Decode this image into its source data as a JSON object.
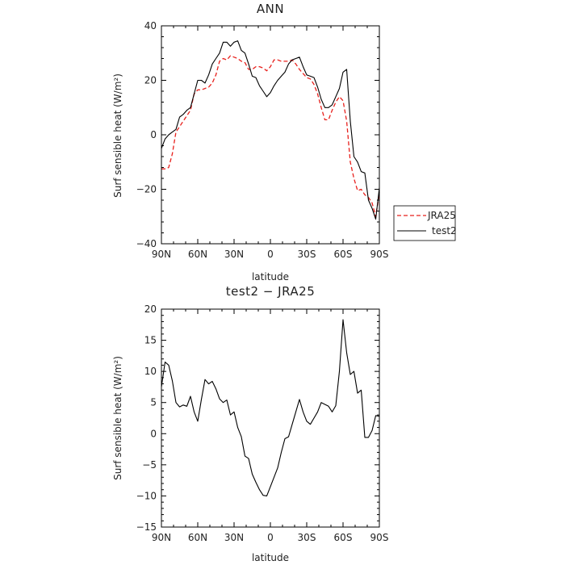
{
  "chart_data": [
    {
      "type": "line",
      "title": "ANN",
      "xlabel": "latitude",
      "ylabel": "Surf sensible heat (W/m²)",
      "xlim": [
        90,
        -90
      ],
      "ylim": [
        -40,
        40
      ],
      "x_ticks": [
        90,
        60,
        30,
        0,
        -30,
        -60,
        -90
      ],
      "x_tick_labels": [
        "90N",
        "60N",
        "30N",
        "0",
        "30S",
        "60S",
        "90S"
      ],
      "y_ticks": [
        -40,
        -20,
        0,
        20,
        40
      ],
      "y_tick_labels": [
        "−40",
        "−20",
        "0",
        "20",
        "40"
      ],
      "legend": "right",
      "series": [
        {
          "name": "JRA25",
          "color": "#e8201c",
          "dash": "dashed",
          "x": [
            90,
            87,
            84,
            81,
            78,
            75,
            72,
            69,
            66,
            63,
            60,
            57,
            54,
            51,
            48,
            45,
            42,
            39,
            36,
            33,
            30,
            27,
            24,
            21,
            18,
            15,
            12,
            9,
            6,
            3,
            0,
            -3,
            -6,
            -9,
            -12,
            -15,
            -18,
            -21,
            -24,
            -27,
            -30,
            -33,
            -36,
            -39,
            -42,
            -45,
            -48,
            -51,
            -54,
            -57,
            -60,
            -63,
            -66,
            -69,
            -72,
            -75,
            -78,
            -81,
            -84,
            -87,
            -90
          ],
          "y": [
            -12.5,
            -12.5,
            -12,
            -7,
            1,
            3,
            5,
            7,
            9,
            15,
            16.5,
            16.5,
            17,
            17.5,
            19,
            22,
            27,
            28,
            27.5,
            29,
            28.5,
            28,
            27,
            26.5,
            24,
            24,
            25,
            25,
            24.5,
            23.5,
            25,
            27.5,
            27.5,
            27,
            27,
            27,
            27.5,
            26,
            24,
            22.5,
            21,
            20.5,
            18.5,
            15,
            10,
            5.5,
            5.5,
            9,
            12,
            14,
            12.5,
            5,
            -10,
            -16,
            -20.5,
            -20,
            -22,
            -23,
            -25,
            -30,
            -21
          ]
        },
        {
          "name": "test2",
          "color": "#000000",
          "dash": "solid",
          "x": [
            90,
            87,
            84,
            81,
            78,
            75,
            72,
            69,
            66,
            63,
            60,
            57,
            54,
            51,
            48,
            45,
            42,
            39,
            36,
            33,
            30,
            27,
            24,
            21,
            18,
            15,
            12,
            9,
            6,
            3,
            0,
            -3,
            -6,
            -9,
            -12,
            -15,
            -18,
            -21,
            -24,
            -27,
            -30,
            -33,
            -36,
            -39,
            -42,
            -45,
            -48,
            -51,
            -54,
            -57,
            -60,
            -63,
            -66,
            -69,
            -72,
            -75,
            -78,
            -81,
            -84,
            -87,
            -90
          ],
          "y": [
            -5,
            -1.5,
            0,
            1,
            2,
            6.5,
            7.5,
            9,
            10,
            15,
            20,
            20,
            19,
            22,
            26,
            28,
            30,
            34,
            34,
            32.5,
            34,
            34.5,
            31,
            30,
            26,
            21.5,
            21,
            18,
            16,
            14,
            15.5,
            18,
            20,
            21.5,
            23,
            26,
            27.5,
            28,
            28.5,
            25,
            22,
            21.5,
            21,
            17.5,
            13,
            10,
            10,
            11,
            14,
            17,
            23,
            24,
            5,
            -8,
            -10,
            -13.5,
            -14,
            -24,
            -27,
            -31,
            -19.5
          ]
        }
      ]
    },
    {
      "type": "line",
      "title": "test2 − JRA25",
      "xlabel": "latitude",
      "ylabel": "Surf sensible heat (W/m²)",
      "xlim": [
        90,
        -90
      ],
      "ylim": [
        -15,
        20
      ],
      "x_ticks": [
        90,
        60,
        30,
        0,
        -30,
        -60,
        -90
      ],
      "x_tick_labels": [
        "90N",
        "60N",
        "30N",
        "0",
        "30S",
        "60S",
        "90S"
      ],
      "y_ticks": [
        -15,
        -10,
        -5,
        0,
        5,
        10,
        15,
        20
      ],
      "y_tick_labels": [
        "−15",
        "−10",
        "−5",
        "0",
        "5",
        "10",
        "15",
        "20"
      ],
      "series": [
        {
          "color": "#000000",
          "dash": "solid",
          "x": [
            90,
            87,
            84,
            81,
            78,
            75,
            72,
            69,
            66,
            63,
            60,
            57,
            54,
            51,
            48,
            45,
            42,
            39,
            36,
            33,
            30,
            27,
            24,
            21,
            18,
            15,
            12,
            9,
            6,
            3,
            0,
            -3,
            -6,
            -9,
            -12,
            -15,
            -18,
            -21,
            -24,
            -27,
            -30,
            -33,
            -36,
            -39,
            -42,
            -45,
            -48,
            -51,
            -54,
            -57,
            -60,
            -63,
            -66,
            -69,
            -72,
            -75,
            -78,
            -81,
            -84,
            -87,
            -90
          ],
          "y": [
            7.5,
            11.5,
            11,
            8.5,
            5,
            4.3,
            4.6,
            4.4,
            6,
            3.5,
            2,
            5.5,
            8.7,
            8,
            8.4,
            7.2,
            5.6,
            5,
            5.4,
            3,
            3.5,
            1,
            -0.5,
            -3.6,
            -4,
            -6.5,
            -7.8,
            -9,
            -9.9,
            -10,
            -8.5,
            -7,
            -5.5,
            -3,
            -0.8,
            -0.5,
            1.5,
            3.5,
            5.5,
            3.5,
            2,
            1.5,
            2.5,
            3.5,
            5,
            4.7,
            4.4,
            3.5,
            4.5,
            10,
            18.3,
            13,
            9.5,
            10,
            6.5,
            7,
            -0.6,
            -0.6,
            0.5,
            2.9,
            2.8
          ]
        }
      ]
    }
  ]
}
